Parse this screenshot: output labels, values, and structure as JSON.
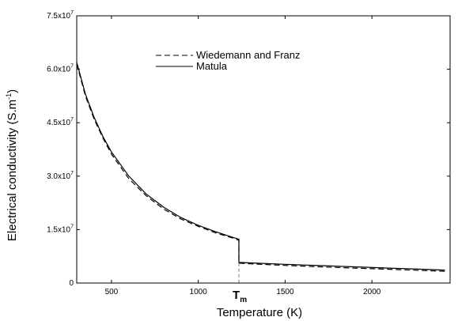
{
  "chart_data": {
    "type": "line",
    "title": "",
    "xlabel": "Temperature (K)",
    "ylabel": "Electrical conductivity (S.m",
    "ylabel_sup": "-1",
    "ylabel_close": ")",
    "xlim": [
      300,
      2450
    ],
    "ylim": [
      0,
      75000000
    ],
    "x_ticks": [
      500,
      1000,
      1500,
      2000
    ],
    "y_ticks": [
      {
        "value": 0,
        "mantissa": "0",
        "exp": ""
      },
      {
        "value": 15000000,
        "mantissa": "1.5x10",
        "exp": "7"
      },
      {
        "value": 30000000,
        "mantissa": "3.0x10",
        "exp": "7"
      },
      {
        "value": 45000000,
        "mantissa": "4.5x10",
        "exp": "7"
      },
      {
        "value": 60000000,
        "mantissa": "6.0x10",
        "exp": "7"
      },
      {
        "value": 75000000,
        "mantissa": "7.5x10",
        "exp": "7"
      }
    ],
    "grid": false,
    "legend_position": "top-center",
    "annotation": {
      "text": "T",
      "subscript": "m",
      "x": 1234
    },
    "series": [
      {
        "name": "Wiedemann and Franz",
        "style": "dashed",
        "x": [
          300,
          350,
          400,
          450,
          500,
          600,
          700,
          800,
          900,
          1000,
          1100,
          1200,
          1234,
          1234,
          1300,
          1500,
          1700,
          1900,
          2100,
          2300,
          2420
        ],
        "y": [
          61500000,
          52500000,
          46000000,
          40800000,
          36200000,
          29300000,
          24500000,
          20800000,
          18000000,
          15900000,
          14100000,
          12600000,
          12000000,
          5600000,
          5400000,
          4950000,
          4550000,
          4200000,
          3850000,
          3500000,
          3300000
        ]
      },
      {
        "name": "Matula",
        "style": "solid",
        "x": [
          300,
          350,
          400,
          450,
          500,
          600,
          700,
          800,
          900,
          1000,
          1100,
          1200,
          1234,
          1234,
          1300,
          1500,
          1700,
          1900,
          2100,
          2300,
          2420
        ],
        "y": [
          62000000,
          53000000,
          46500000,
          41200000,
          36800000,
          30000000,
          25000000,
          21300000,
          18400000,
          16200000,
          14400000,
          12800000,
          12300000,
          5800000,
          5650000,
          5250000,
          4900000,
          4550000,
          4200000,
          3850000,
          3650000
        ]
      }
    ]
  }
}
